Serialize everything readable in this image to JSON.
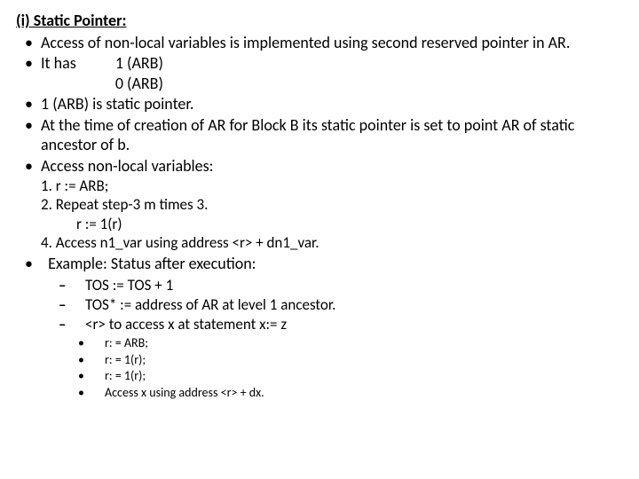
{
  "title": "(i)  Static Pointer:",
  "bullets": {
    "b1": "Access of non-local variables is implemented using second reserved pointer in AR.",
    "b2a": "It has",
    "b2_arb1": "1 (ARB)",
    "b2_arb0": "0 (ARB)",
    "b3": "1 (ARB) is static pointer.",
    "b4": "At the time of creation of AR for Block B its static pointer is set to point AR of static ancestor of b.",
    "b5": "Access non-local variables:"
  },
  "steps": {
    "s1": "1. r := ARB;",
    "s2": "2. Repeat step-3 m times 3.",
    "s2b": "r := 1(r)",
    "s4": "4.     Access n1_var using address <r> + dn1_var."
  },
  "example_label": "Example: Status after execution:",
  "dashes": {
    "d1": "TOS := TOS + 1",
    "d2": "TOS* := address of AR at level 1 ancestor.",
    "d3": "<r> to access x at statement x:= z"
  },
  "dots": {
    "o1": "r: = ARB;",
    "o2": "r: = 1(r);",
    "o3": "r: = 1(r);",
    "o4": "Access x using address <r> + dx."
  }
}
